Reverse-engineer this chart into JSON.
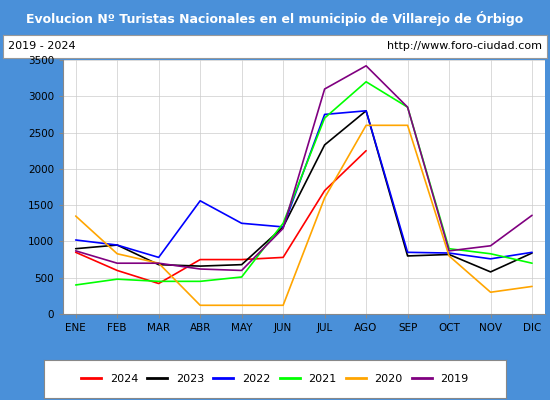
{
  "title": "Evolucion Nº Turistas Nacionales en el municipio de Villarejo de Órbigo",
  "subtitle_left": "2019 - 2024",
  "subtitle_right": "http://www.foro-ciudad.com",
  "title_bg": "#4a90d9",
  "title_color": "white",
  "months": [
    "ENE",
    "FEB",
    "MAR",
    "ABR",
    "MAY",
    "JUN",
    "JUL",
    "AGO",
    "SEP",
    "OCT",
    "NOV",
    "DIC"
  ],
  "ylim": [
    0,
    3500
  ],
  "yticks": [
    0,
    500,
    1000,
    1500,
    2000,
    2500,
    3000,
    3500
  ],
  "series": {
    "2024": {
      "color": "red",
      "values": [
        850,
        600,
        420,
        750,
        750,
        780,
        1700,
        2250,
        null,
        null,
        null,
        null
      ]
    },
    "2023": {
      "color": "black",
      "values": [
        900,
        950,
        680,
        660,
        680,
        1200,
        2330,
        2800,
        800,
        820,
        580,
        840
      ]
    },
    "2022": {
      "color": "blue",
      "values": [
        1020,
        950,
        780,
        1560,
        1250,
        1200,
        2750,
        2800,
        850,
        840,
        760,
        850
      ]
    },
    "2021": {
      "color": "lime",
      "values": [
        400,
        480,
        450,
        450,
        510,
        1250,
        2700,
        3200,
        2850,
        900,
        830,
        700
      ]
    },
    "2020": {
      "color": "orange",
      "values": [
        1350,
        830,
        700,
        120,
        120,
        120,
        1600,
        2600,
        2600,
        800,
        300,
        380
      ]
    },
    "2019": {
      "color": "purple",
      "values": [
        870,
        700,
        700,
        620,
        600,
        1180,
        3100,
        3420,
        2850,
        870,
        940,
        1360
      ]
    }
  },
  "legend_order": [
    "2024",
    "2023",
    "2022",
    "2021",
    "2020",
    "2019"
  ],
  "plot_bg": "white",
  "grid_color": "#cccccc",
  "outer_bg": "#4a90d9"
}
